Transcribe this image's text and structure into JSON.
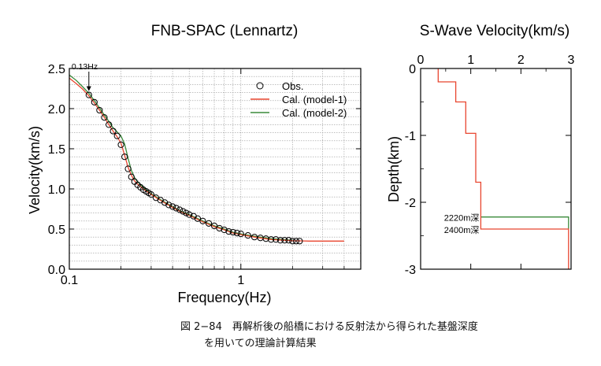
{
  "chart_data": [
    {
      "type": "scatter",
      "title": "FNB-SPAC (Lennartz)",
      "xlabel": "Frequency(Hz)",
      "ylabel": "Velocity(km/s)",
      "xscale": "log",
      "xlim": [
        0.1,
        5
      ],
      "ylim": [
        0.0,
        2.5
      ],
      "x_ticks": [
        "0.1",
        "1"
      ],
      "y_ticks": [
        "0.0",
        "0.5",
        "1.0",
        "1.5",
        "2.0",
        "2.5"
      ],
      "grid": true,
      "legend_position": "top-right",
      "legend": [
        "Obs.",
        "Cal. (model-1)",
        "Cal. (model-2)"
      ],
      "annotation": "0.13Hz",
      "annotation_x": 0.13,
      "series": [
        {
          "name": "Obs.",
          "marker": "open-circle",
          "color": "#000000",
          "x": [
            0.13,
            0.14,
            0.15,
            0.16,
            0.17,
            0.18,
            0.19,
            0.2,
            0.21,
            0.22,
            0.23,
            0.24,
            0.25,
            0.26,
            0.27,
            0.28,
            0.29,
            0.3,
            0.32,
            0.34,
            0.36,
            0.38,
            0.4,
            0.42,
            0.44,
            0.46,
            0.48,
            0.5,
            0.53,
            0.56,
            0.6,
            0.65,
            0.7,
            0.75,
            0.8,
            0.85,
            0.9,
            0.95,
            1.0,
            1.1,
            1.2,
            1.3,
            1.4,
            1.5,
            1.6,
            1.7,
            1.8,
            1.9,
            2.0,
            2.1,
            2.2
          ],
          "y": [
            2.17,
            2.08,
            1.98,
            1.89,
            1.8,
            1.72,
            1.66,
            1.55,
            1.4,
            1.25,
            1.15,
            1.09,
            1.05,
            1.02,
            0.99,
            0.97,
            0.95,
            0.93,
            0.89,
            0.86,
            0.83,
            0.8,
            0.78,
            0.76,
            0.74,
            0.72,
            0.7,
            0.68,
            0.66,
            0.63,
            0.6,
            0.57,
            0.54,
            0.51,
            0.49,
            0.47,
            0.46,
            0.45,
            0.44,
            0.42,
            0.4,
            0.39,
            0.38,
            0.37,
            0.37,
            0.36,
            0.36,
            0.36,
            0.35,
            0.35,
            0.35
          ]
        },
        {
          "name": "Cal. (model-1)",
          "color": "#e8452f",
          "x": [
            0.1,
            0.11,
            0.12,
            0.13,
            0.14,
            0.15,
            0.16,
            0.17,
            0.18,
            0.19,
            0.2,
            0.21,
            0.22,
            0.23,
            0.24,
            0.25,
            0.27,
            0.3,
            0.35,
            0.4,
            0.45,
            0.5,
            0.6,
            0.7,
            0.8,
            0.9,
            1.0,
            1.2,
            1.5,
            2.0,
            2.5,
            3.0,
            4.0
          ],
          "y": [
            2.38,
            2.31,
            2.24,
            2.16,
            2.07,
            1.98,
            1.89,
            1.8,
            1.72,
            1.65,
            1.57,
            1.42,
            1.27,
            1.17,
            1.1,
            1.06,
            1.0,
            0.93,
            0.84,
            0.77,
            0.71,
            0.67,
            0.59,
            0.53,
            0.49,
            0.45,
            0.43,
            0.4,
            0.37,
            0.355,
            0.35,
            0.35,
            0.35
          ]
        },
        {
          "name": "Cal. (model-2)",
          "color": "#3a8a3a",
          "x": [
            0.1,
            0.11,
            0.12,
            0.13,
            0.14,
            0.15,
            0.16,
            0.17,
            0.18,
            0.19,
            0.2,
            0.21,
            0.22,
            0.23,
            0.24,
            0.25,
            0.27,
            0.3,
            0.35,
            0.4,
            0.45,
            0.5,
            0.6,
            0.7,
            0.8,
            0.9,
            1.0,
            1.2,
            1.5,
            2.0
          ],
          "y": [
            2.42,
            2.35,
            2.27,
            2.19,
            2.1,
            2.01,
            1.92,
            1.84,
            1.76,
            1.71,
            1.66,
            1.56,
            1.38,
            1.23,
            1.14,
            1.09,
            1.02,
            0.94,
            0.85,
            0.78,
            0.72,
            0.68,
            0.6,
            0.54,
            0.5,
            0.46,
            0.44,
            0.41,
            0.38,
            0.36
          ]
        }
      ]
    },
    {
      "type": "line",
      "title": "S-Wave Velocity(km/s)",
      "xlabel": "",
      "ylabel": "Depth(km)",
      "xlim": [
        0,
        3
      ],
      "ylim": [
        -3,
        0
      ],
      "x_ticks": [
        "0",
        "1",
        "2",
        "3"
      ],
      "y_ticks": [
        "0",
        "-1",
        "-2",
        "-3"
      ],
      "x_axis_position": "top",
      "annotations": [
        "2220m深",
        "2400m深"
      ],
      "annotation_depths": [
        -2.22,
        -2.4
      ],
      "series": [
        {
          "name": "model-1",
          "color": "#e8452f",
          "step_profile": [
            [
              0.35,
              0.0
            ],
            [
              0.35,
              -0.2
            ],
            [
              0.7,
              -0.2
            ],
            [
              0.7,
              -0.5
            ],
            [
              0.9,
              -0.5
            ],
            [
              0.9,
              -0.97
            ],
            [
              1.1,
              -0.97
            ],
            [
              1.1,
              -1.7
            ],
            [
              1.2,
              -1.7
            ],
            [
              1.2,
              -2.4
            ],
            [
              2.95,
              -2.4
            ],
            [
              2.95,
              -3.0
            ]
          ]
        },
        {
          "name": "model-2",
          "color": "#3a8a3a",
          "step_profile": [
            [
              1.2,
              -2.22
            ],
            [
              2.95,
              -2.22
            ],
            [
              2.95,
              -2.4
            ]
          ]
        }
      ]
    }
  ],
  "caption": {
    "line1": "図 2−84　再解析後の船橋における反射法から得られた基盤深度",
    "line2": "を用いての理論計算結果"
  }
}
